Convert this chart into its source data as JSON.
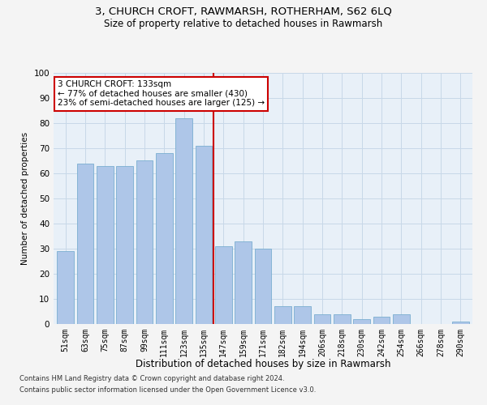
{
  "title1": "3, CHURCH CROFT, RAWMARSH, ROTHERHAM, S62 6LQ",
  "title2": "Size of property relative to detached houses in Rawmarsh",
  "xlabel": "Distribution of detached houses by size in Rawmarsh",
  "ylabel": "Number of detached properties",
  "categories": [
    "51sqm",
    "63sqm",
    "75sqm",
    "87sqm",
    "99sqm",
    "111sqm",
    "123sqm",
    "135sqm",
    "147sqm",
    "159sqm",
    "171sqm",
    "182sqm",
    "194sqm",
    "206sqm",
    "218sqm",
    "230sqm",
    "242sqm",
    "254sqm",
    "266sqm",
    "278sqm",
    "290sqm"
  ],
  "values": [
    29,
    64,
    63,
    63,
    65,
    68,
    82,
    71,
    31,
    33,
    30,
    7,
    7,
    4,
    4,
    2,
    3,
    4,
    0,
    0,
    1
  ],
  "bar_color": "#aec6e8",
  "bar_edge_color": "#7aaed0",
  "vline_x": 7.5,
  "vline_color": "#cc0000",
  "annotation_text": "3 CHURCH CROFT: 133sqm\n← 77% of detached houses are smaller (430)\n23% of semi-detached houses are larger (125) →",
  "annotation_box_color": "#ffffff",
  "annotation_box_edge": "#cc0000",
  "footer1": "Contains HM Land Registry data © Crown copyright and database right 2024.",
  "footer2": "Contains public sector information licensed under the Open Government Licence v3.0.",
  "ylim": [
    0,
    100
  ],
  "grid_color": "#c8d8e8",
  "bg_color": "#e8f0f8",
  "fig_bg": "#f4f4f4"
}
